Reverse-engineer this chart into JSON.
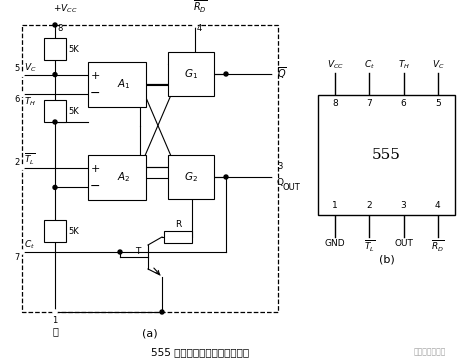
{
  "bg_color": "#ffffff",
  "fig_width": 4.74,
  "fig_height": 3.64,
  "dpi": 100,
  "caption": "555 定时器内部框图及引脚排列",
  "label_a": "(a)",
  "label_b": "(b)",
  "watermark": "东农电气实验室"
}
